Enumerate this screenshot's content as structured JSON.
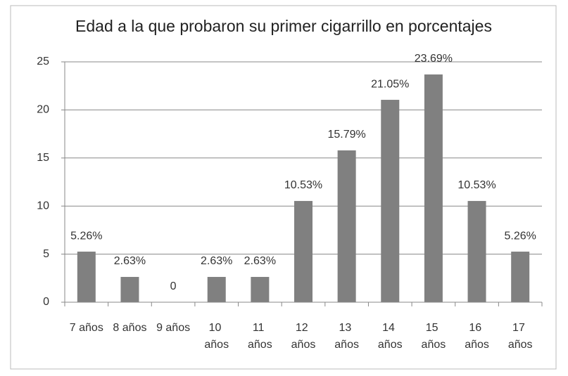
{
  "chart_data": {
    "type": "bar",
    "title": "Edad a la que probaron su primer cigarrillo en porcentajes",
    "categories": [
      "7 años",
      "8 años",
      "9 años",
      "10 años",
      "11 años",
      "12 años",
      "13 años",
      "14 años",
      "15 años",
      "16 años",
      "17 años"
    ],
    "values": [
      5.26,
      2.63,
      0,
      2.63,
      2.63,
      10.53,
      15.79,
      21.05,
      23.69,
      10.53,
      5.26
    ],
    "value_labels": [
      "5.26%",
      "2.63%",
      "0",
      "2.63%",
      "2.63%",
      "10.53%",
      "15.79%",
      "21.05%",
      "23.69%",
      "10.53%",
      "5.26%"
    ],
    "color": "#808080",
    "ylim": [
      0,
      25
    ],
    "yticks": [
      0,
      5,
      10,
      15,
      20,
      25
    ],
    "grid": true
  }
}
